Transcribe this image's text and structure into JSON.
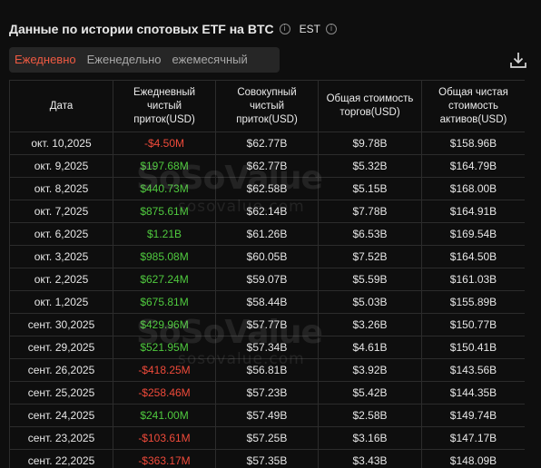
{
  "header": {
    "title": "Данные по истории спотовых ETF на BTC",
    "timezone": "EST",
    "info_icon": "info-circle-icon"
  },
  "tabs": [
    {
      "label": "Ежедневно",
      "active": true
    },
    {
      "label": "Еженедельно",
      "active": false
    },
    {
      "label": "ежемесячный",
      "active": false
    }
  ],
  "download_icon": "download-icon",
  "watermark": {
    "brand": "SoSoValue",
    "url": "sosovalue.com"
  },
  "colors": {
    "positive": "#4fc93e",
    "negative": "#ee4a3a",
    "accent": "#ef5a42"
  },
  "table": {
    "headers": [
      "Дата",
      "Ежедневный чистый приток(USD)",
      "Совокупный чистый приток(USD)",
      "Общая стоимость торгов(USD)",
      "Общая чистая стоимость активов(USD)"
    ],
    "rows": [
      [
        "окт. 10,2025",
        "-$4.50M",
        "$62.77B",
        "$9.78B",
        "$158.96B"
      ],
      [
        "окт. 9,2025",
        "$197.68M",
        "$62.77B",
        "$5.32B",
        "$164.79B"
      ],
      [
        "окт. 8,2025",
        "$440.73M",
        "$62.58B",
        "$5.15B",
        "$168.00B"
      ],
      [
        "окт. 7,2025",
        "$875.61M",
        "$62.14B",
        "$7.78B",
        "$164.91B"
      ],
      [
        "окт. 6,2025",
        "$1.21B",
        "$61.26B",
        "$6.53B",
        "$169.54B"
      ],
      [
        "окт. 3,2025",
        "$985.08M",
        "$60.05B",
        "$7.52B",
        "$164.50B"
      ],
      [
        "окт. 2,2025",
        "$627.24M",
        "$59.07B",
        "$5.59B",
        "$161.03B"
      ],
      [
        "окт. 1,2025",
        "$675.81M",
        "$58.44B",
        "$5.03B",
        "$155.89B"
      ],
      [
        "сент. 30,2025",
        "$429.96M",
        "$57.77B",
        "$3.26B",
        "$150.77B"
      ],
      [
        "сент. 29,2025",
        "$521.95M",
        "$57.34B",
        "$4.61B",
        "$150.41B"
      ],
      [
        "сент. 26,2025",
        "-$418.25M",
        "$56.81B",
        "$3.92B",
        "$143.56B"
      ],
      [
        "сент. 25,2025",
        "-$258.46M",
        "$57.23B",
        "$5.42B",
        "$144.35B"
      ],
      [
        "сент. 24,2025",
        "$241.00M",
        "$57.49B",
        "$2.58B",
        "$149.74B"
      ],
      [
        "сент. 23,2025",
        "-$103.61M",
        "$57.25B",
        "$3.16B",
        "$147.17B"
      ],
      [
        "сент. 22,2025",
        "-$363.17M",
        "$57.35B",
        "$3.43B",
        "$148.09B"
      ]
    ]
  }
}
